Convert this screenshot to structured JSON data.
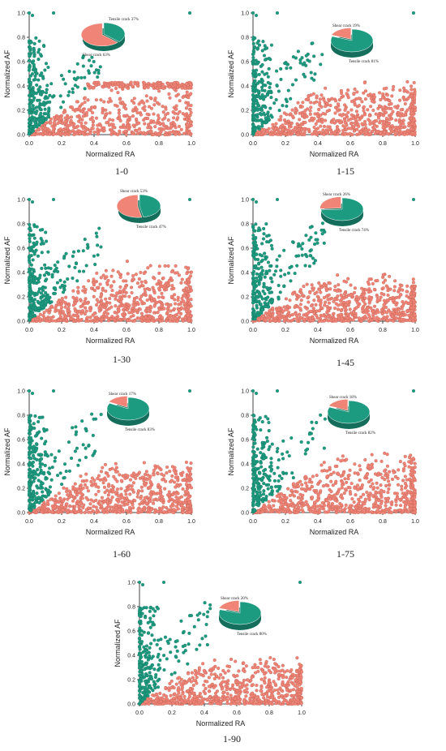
{
  "colors": {
    "tensile": "#1c9b80",
    "shear": "#f08577",
    "tensile_dark": "#146e5b",
    "shear_dark": "#b85a4f",
    "axis": "#444444"
  },
  "chart_data": [
    {
      "type": "scatter",
      "caption": "1-0",
      "xlabel": "Normalized RA",
      "ylabel": "Normalized AF",
      "xlim": [
        0,
        1.0
      ],
      "ylim": [
        0,
        1.0
      ],
      "xticks": [
        "0.0",
        "0.2",
        "0.4",
        "0.6",
        "0.8",
        "1.0"
      ],
      "yticks": [
        "0.0",
        "0.2",
        "0.4",
        "0.6",
        "0.8",
        "1.0"
      ],
      "grid": false,
      "series": [
        {
          "name": "Tensile crack",
          "percent": 37,
          "label": "Tensile crack 37%"
        },
        {
          "name": "Shear crack",
          "percent": 63,
          "label": "Shear crack 63%"
        }
      ]
    },
    {
      "type": "scatter",
      "caption": "1-15",
      "xlabel": "Normalized RA",
      "ylabel": "Normalized AF",
      "xlim": [
        0,
        1.0
      ],
      "ylim": [
        0,
        1.0
      ],
      "xticks": [
        "0.0",
        "0.2",
        "0.4",
        "0.6",
        "0.8",
        "1.0"
      ],
      "yticks": [
        "0.0",
        "0.2",
        "0.4",
        "0.6",
        "0.8",
        "1.0"
      ],
      "grid": false,
      "series": [
        {
          "name": "Tensile crack",
          "percent": 81,
          "label": "Tensile crack 81%"
        },
        {
          "name": "Shear crack",
          "percent": 19,
          "label": "Shear crack 19%"
        }
      ]
    },
    {
      "type": "scatter",
      "caption": "1-30",
      "xlabel": "Normalized RA",
      "ylabel": "Normalized AF",
      "xlim": [
        0,
        1.0
      ],
      "ylim": [
        0,
        1.0
      ],
      "xticks": [
        "0.0",
        "0.2",
        "0.4",
        "0.6",
        "0.8",
        "1.0"
      ],
      "yticks": [
        "0.0",
        "0.2",
        "0.4",
        "0.6",
        "0.8",
        "1.0"
      ],
      "grid": false,
      "series": [
        {
          "name": "Tensile crack",
          "percent": 47,
          "label": "Tensile crack 47%"
        },
        {
          "name": "Shear crack",
          "percent": 53,
          "label": "Shear crack 53%"
        }
      ]
    },
    {
      "type": "scatter",
      "caption": "1-45",
      "xlabel": "Normalized RA",
      "ylabel": "Normalized AF",
      "xlim": [
        0,
        1.0
      ],
      "ylim": [
        0,
        1.0
      ],
      "xticks": [
        "0.0",
        "0.2",
        "0.4",
        "0.6",
        "0.8",
        "1.0"
      ],
      "yticks": [
        "0.0",
        "0.2",
        "0.4",
        "0.6",
        "0.8",
        "1.0"
      ],
      "grid": false,
      "series": [
        {
          "name": "Tensile crack",
          "percent": 74,
          "label": "Tensile crack 74%"
        },
        {
          "name": "Shear crack",
          "percent": 26,
          "label": "Shear crack 26%"
        }
      ]
    },
    {
      "type": "scatter",
      "caption": "1-60",
      "xlabel": "Normalized RA",
      "ylabel": "Normalized AF",
      "xlim": [
        0,
        1.0
      ],
      "ylim": [
        0,
        1.0
      ],
      "xticks": [
        "0.0",
        "0.2",
        "0.4",
        "0.6",
        "0.8",
        "1.0"
      ],
      "yticks": [
        "0.0",
        "0.2",
        "0.4",
        "0.6",
        "0.8",
        "1.0"
      ],
      "grid": false,
      "series": [
        {
          "name": "Tensile crack",
          "percent": 83,
          "label": "Tensile crack 83%"
        },
        {
          "name": "Shear crack",
          "percent": 17,
          "label": "Shear crack 17%"
        }
      ]
    },
    {
      "type": "scatter",
      "caption": "1-75",
      "xlabel": "Normalized RA",
      "ylabel": "Normalized AF",
      "xlim": [
        0,
        1.0
      ],
      "ylim": [
        0,
        1.0
      ],
      "xticks": [
        "0.0",
        "0.2",
        "0.4",
        "0.6",
        "0.8",
        "1.0"
      ],
      "yticks": [
        "0.0",
        "0.2",
        "0.4",
        "0.6",
        "0.8",
        "1.0"
      ],
      "grid": false,
      "series": [
        {
          "name": "Tensile crack",
          "percent": 82,
          "label": "Tensile crack 82%"
        },
        {
          "name": "Shear crack",
          "percent": 18,
          "label": "Shear crack 18%"
        }
      ]
    },
    {
      "type": "scatter",
      "caption": "1-90",
      "xlabel": "Normalized RA",
      "ylabel": "Normalized AF",
      "xlim": [
        0,
        1.0
      ],
      "ylim": [
        0,
        1.0
      ],
      "xticks": [
        "0.0",
        "0.2",
        "0.4",
        "0.6",
        "0.8",
        "1.0"
      ],
      "yticks": [
        "0.0",
        "0.2",
        "0.4",
        "0.6",
        "0.8",
        "1.0"
      ],
      "grid": false,
      "series": [
        {
          "name": "Tensile crack",
          "percent": 80,
          "label": "Tensile crack 80%"
        },
        {
          "name": "Shear crack",
          "percent": 20,
          "label": "Shear crack 20%"
        }
      ]
    }
  ]
}
